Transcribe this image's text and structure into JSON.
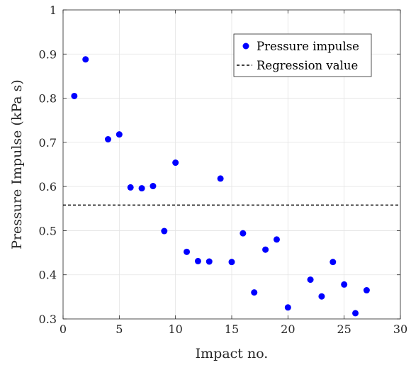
{
  "chart_data": {
    "type": "scatter",
    "xlabel": "Impact no.",
    "ylabel": "Pressure Impulse (kPa s)",
    "xlim": [
      0,
      30
    ],
    "ylim": [
      0.3,
      1.0
    ],
    "xticks": [
      "0",
      "5",
      "10",
      "15",
      "20",
      "25",
      "30"
    ],
    "yticks": [
      "0.3",
      "0.4",
      "0.5",
      "0.6",
      "0.7",
      "0.8",
      "0.9",
      "1"
    ],
    "grid": true,
    "legend_position": "top-right",
    "series": [
      {
        "name": "Pressure impulse",
        "color": "#0000ff",
        "points": [
          [
            1,
            0.805
          ],
          [
            2,
            0.888
          ],
          [
            4,
            0.707
          ],
          [
            5,
            0.718
          ],
          [
            6,
            0.598
          ],
          [
            7,
            0.596
          ],
          [
            8,
            0.601
          ],
          [
            9,
            0.499
          ],
          [
            10,
            0.654
          ],
          [
            11,
            0.452
          ],
          [
            12,
            0.431
          ],
          [
            13,
            0.43
          ],
          [
            14,
            0.618
          ],
          [
            15,
            0.429
          ],
          [
            16,
            0.494
          ],
          [
            17,
            0.36
          ],
          [
            18,
            0.457
          ],
          [
            19,
            0.48
          ],
          [
            20,
            0.326
          ],
          [
            22,
            0.389
          ],
          [
            23,
            0.351
          ],
          [
            24,
            0.429
          ],
          [
            25,
            0.378
          ],
          [
            26,
            0.313
          ],
          [
            27,
            0.365
          ]
        ]
      }
    ],
    "reference_lines": [
      {
        "name": "Regression value",
        "y": 0.558,
        "style": "dashed",
        "color": "#000000"
      }
    ]
  }
}
